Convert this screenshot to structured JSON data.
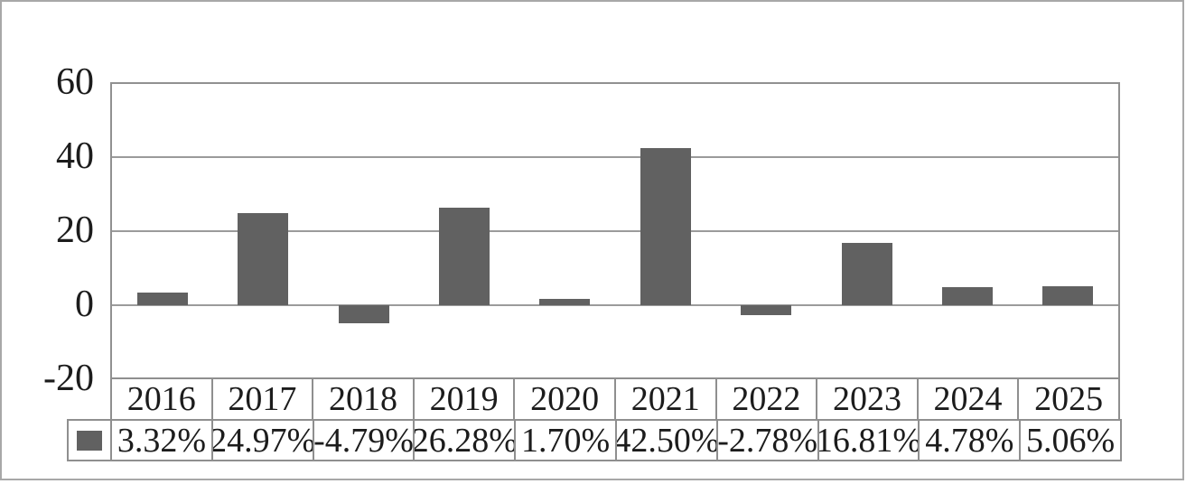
{
  "chart_data": {
    "type": "bar",
    "title": "",
    "categories": [
      "2016",
      "2017",
      "2018",
      "2019",
      "2020",
      "2021",
      "2022",
      "2023",
      "2024",
      "2025"
    ],
    "series": [
      {
        "name": "",
        "values": [
          3.32,
          24.97,
          -4.79,
          26.28,
          1.7,
          42.5,
          -2.78,
          16.81,
          4.78,
          5.06
        ],
        "value_labels": [
          "3.32%",
          "24.97%",
          "-4.79%",
          "26.28%",
          "1.70%",
          "42.50%",
          "-2.78%",
          "16.81%",
          "4.78%",
          "5.06%"
        ]
      }
    ],
    "y_axis": {
      "min": -20,
      "max": 60,
      "tick_interval": 20,
      "ticks": [
        60,
        40,
        20,
        0,
        -20
      ],
      "tick_labels": [
        "60",
        "40",
        "20",
        "0",
        "-20"
      ],
      "grid": true
    },
    "x_axis": {
      "label": ""
    },
    "legend": {
      "position": "data-table-left",
      "label": "",
      "swatch_only": true
    },
    "data_table_shown": true
  },
  "colors": {
    "bar": "#616161",
    "legend_swatch": "#616161",
    "gridline": "#9b9b9b",
    "plot_border": "#919191",
    "table_border": "#8f8f8f",
    "frame_border": "#a8a8a8",
    "text": "#1c1c1c",
    "background": "#ffffff"
  }
}
